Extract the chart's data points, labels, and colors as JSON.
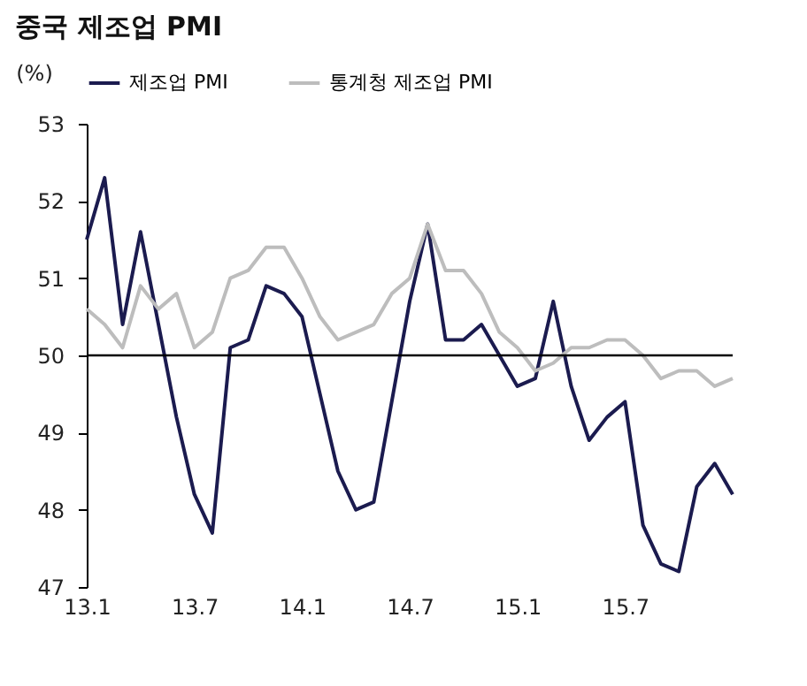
{
  "chart_data": {
    "type": "line",
    "title": "중국 제조업 PMI",
    "ylabel": "(%)",
    "categories": [
      "13.1",
      null,
      null,
      null,
      null,
      null,
      "13.7",
      null,
      null,
      null,
      null,
      null,
      "14.1",
      null,
      null,
      null,
      null,
      null,
      "14.7",
      null,
      null,
      null,
      null,
      null,
      "15.1",
      null,
      null,
      null,
      null,
      null,
      "15.7",
      null,
      null,
      null,
      null,
      null,
      null
    ],
    "series": [
      {
        "name": "제조업 PMI",
        "color": "#1b1b4f",
        "values": [
          51.5,
          52.3,
          50.4,
          51.6,
          50.4,
          49.2,
          48.2,
          47.7,
          50.1,
          50.2,
          50.9,
          50.8,
          50.5,
          49.5,
          48.5,
          48.0,
          48.1,
          49.4,
          50.7,
          51.7,
          50.2,
          50.2,
          50.4,
          50.0,
          49.6,
          49.7,
          50.7,
          49.6,
          48.9,
          49.2,
          49.4,
          47.8,
          47.3,
          47.2,
          48.3,
          48.6,
          48.2
        ]
      },
      {
        "name": "통계청 제조업 PMI",
        "color": "#bdbdbd",
        "values": [
          50.6,
          50.4,
          50.1,
          50.9,
          50.6,
          50.8,
          50.1,
          50.3,
          51.0,
          51.1,
          51.4,
          51.4,
          51.0,
          50.5,
          50.2,
          50.3,
          50.4,
          50.8,
          51.0,
          51.7,
          51.1,
          51.1,
          50.8,
          50.3,
          50.1,
          49.8,
          49.9,
          50.1,
          50.1,
          50.2,
          50.2,
          50.0,
          49.7,
          49.8,
          49.8,
          49.6,
          49.7
        ]
      }
    ],
    "ylim": [
      47,
      53
    ],
    "yticks": [
      47,
      48,
      49,
      50,
      51,
      52,
      53
    ],
    "ref_lines": [
      {
        "axis": "y",
        "value": 50,
        "color": "#000000"
      }
    ],
    "grid": false,
    "legend": "top",
    "marker": "none",
    "line_style": "solid"
  }
}
